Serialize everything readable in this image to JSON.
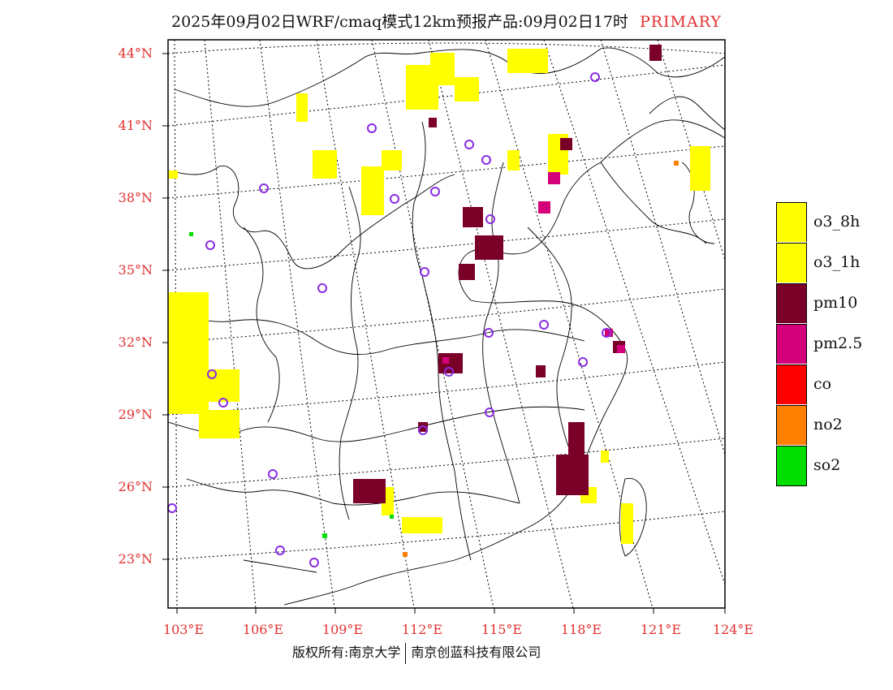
{
  "title": {
    "main": "2025年09月02日WRF/cmaq模式12km预报产品:09月02日17时",
    "tag": "PRIMARY"
  },
  "map": {
    "lat_labels": [
      "44°N",
      "41°N",
      "38°N",
      "35°N",
      "32°N",
      "29°N",
      "26°N",
      "23°N"
    ],
    "lon_labels": [
      "103°E",
      "106°E",
      "109°E",
      "112°E",
      "115°E",
      "118°E",
      "121°E",
      "124°E"
    ],
    "label_color": "#e03030"
  },
  "legend": {
    "items": [
      {
        "label": "o3_8h",
        "color": "#ffff00"
      },
      {
        "label": "o3_1h",
        "color": "#ffff00"
      },
      {
        "label": "pm10",
        "color": "#7a0028"
      },
      {
        "label": "pm2.5",
        "color": "#d4007a"
      },
      {
        "label": "co",
        "color": "#ff0000"
      },
      {
        "label": "no2",
        "color": "#ff8000"
      },
      {
        "label": "so2",
        "color": "#00dd00"
      }
    ]
  },
  "footer": {
    "left": "版权所有:南京大学",
    "right": "南京创蓝科技有限公司"
  }
}
